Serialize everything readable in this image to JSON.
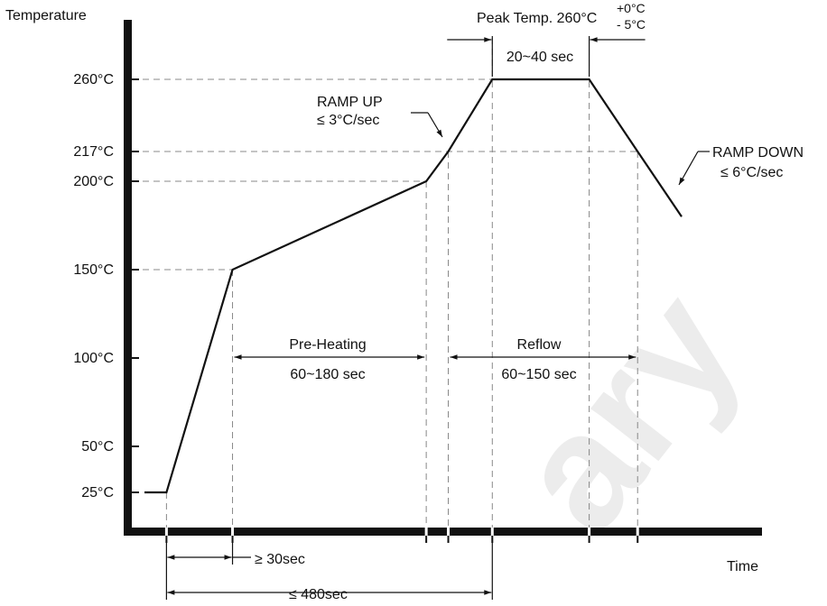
{
  "chart_data": {
    "type": "line",
    "ylabel": "Temperature",
    "xlabel": "Time",
    "y_ticks": [
      {
        "value": 25,
        "label": "25°C"
      },
      {
        "value": 50,
        "label": "50°C"
      },
      {
        "value": 100,
        "label": "100°C"
      },
      {
        "value": 150,
        "label": "150°C"
      },
      {
        "value": 200,
        "label": "200°C"
      },
      {
        "value": 217,
        "label": "217°C"
      },
      {
        "value": 260,
        "label": "260°C"
      }
    ],
    "ylim": [
      0,
      280
    ],
    "profile": [
      {
        "x": 0,
        "y": 25
      },
      {
        "x": 25,
        "y": 25
      },
      {
        "x": 100,
        "y": 150
      },
      {
        "x": 320,
        "y": 200
      },
      {
        "x": 345,
        "y": 217
      },
      {
        "x": 395,
        "y": 260
      },
      {
        "x": 505,
        "y": 260
      },
      {
        "x": 560,
        "y": 217
      },
      {
        "x": 610,
        "y": 180
      }
    ],
    "annotations": {
      "peak_temp_prefix": "Peak Temp. 260°C",
      "peak_tol_plus": "+0°C",
      "peak_tol_minus": "- 5°C",
      "peak_duration": "20~40 sec",
      "ramp_up_title": "RAMP UP",
      "ramp_up_rate": "≤ 3°C/sec",
      "ramp_down_title": "RAMP DOWN",
      "ramp_down_rate": "≤ 6°C/sec",
      "preheat_title": "Pre-Heating",
      "preheat_duration": "60~180 sec",
      "reflow_title": "Reflow",
      "reflow_duration": "60~150 sec",
      "min_time": "≥ 30sec",
      "max_time": "≤ 480sec"
    },
    "watermark": "ary"
  }
}
